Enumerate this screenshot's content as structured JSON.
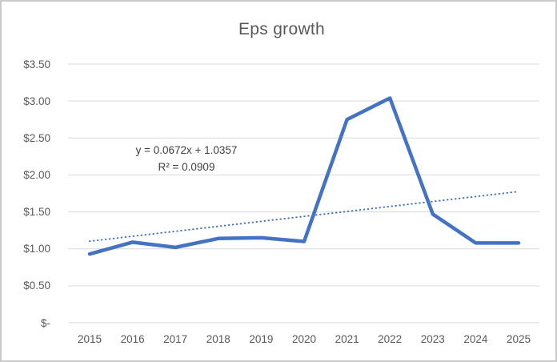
{
  "window": {
    "background": "#ffffff",
    "border_color": "#c9c9c9"
  },
  "chart_data": {
    "type": "line",
    "title": "Eps growth",
    "categories": [
      "2015",
      "2016",
      "2017",
      "2018",
      "2019",
      "2020",
      "2021",
      "2022",
      "2023",
      "2024",
      "2025"
    ],
    "series": [
      {
        "name": "Eps",
        "values": [
          0.93,
          1.09,
          1.02,
          1.14,
          1.15,
          1.1,
          2.75,
          3.04,
          1.47,
          1.08,
          1.08
        ],
        "color": "#4472C4",
        "style": "solid"
      }
    ],
    "trendline": {
      "type": "linear",
      "slope": 0.0672,
      "intercept": 1.0357,
      "equation_label": "y = 0.0672x + 1.0357",
      "r2_label": "R² = 0.0909",
      "color": "#4472C4",
      "style": "dotted"
    },
    "y_axis": {
      "tick_labels": [
        "$3.50",
        "$3.00",
        "$2.50",
        "$2.00",
        "$1.50",
        "$1.00",
        "$0.50",
        "$-"
      ],
      "tick_values": [
        3.5,
        3.0,
        2.5,
        2.0,
        1.5,
        1.0,
        0.5,
        0
      ],
      "min": 0,
      "max": 3.5,
      "format": "currency"
    },
    "x_axis": {
      "tick_labels": [
        "2015",
        "2016",
        "2017",
        "2018",
        "2019",
        "2020",
        "2021",
        "2022",
        "2023",
        "2024",
        "2025"
      ]
    },
    "grid": true,
    "legend_position": "none",
    "colors": {
      "gridline": "#d9d9d9",
      "axis_text": "#595959",
      "title_text": "#595959",
      "equation_text": "#404040"
    }
  }
}
